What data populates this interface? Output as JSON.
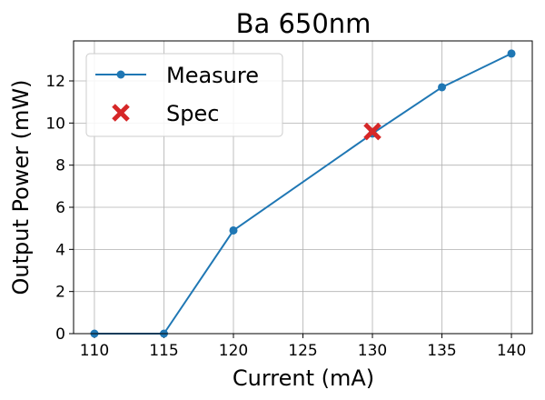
{
  "chart_data": {
    "type": "line",
    "title": "Ba 650nm",
    "xlabel": "Current (mA)",
    "ylabel": "Output Power (mW)",
    "xlim": [
      108.5,
      141.5
    ],
    "ylim": [
      0,
      13.9
    ],
    "xticks": [
      110,
      115,
      120,
      125,
      130,
      135,
      140
    ],
    "yticks": [
      0,
      2,
      4,
      6,
      8,
      10,
      12
    ],
    "grid": true,
    "legend_position": "upper-left",
    "series": [
      {
        "name": "Measure",
        "color": "#1f77b4",
        "marker": "circle",
        "x": [
          110,
          115,
          120,
          130,
          135,
          140
        ],
        "y": [
          0,
          0,
          4.9,
          9.5,
          11.7,
          13.3
        ]
      },
      {
        "name": "Spec",
        "color": "#d62728",
        "marker": "x",
        "x": [
          130
        ],
        "y": [
          9.6
        ]
      }
    ]
  }
}
